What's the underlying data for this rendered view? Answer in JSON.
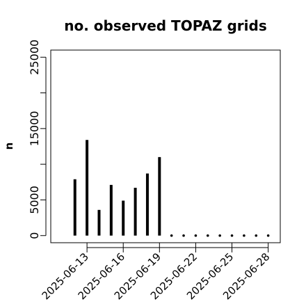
{
  "chart_data": {
    "type": "bar",
    "title": "no. observed TOPAZ grids",
    "xlabel": "",
    "ylabel": "n",
    "x": [
      "2025-06-12",
      "2025-06-13",
      "2025-06-14",
      "2025-06-15",
      "2025-06-16",
      "2025-06-17",
      "2025-06-18",
      "2025-06-19",
      "2025-06-20",
      "2025-06-21",
      "2025-06-22",
      "2025-06-23",
      "2025-06-24",
      "2025-06-25",
      "2025-06-26",
      "2025-06-27",
      "2025-06-28"
    ],
    "values": [
      7900,
      13400,
      3600,
      7100,
      4900,
      6700,
      8700,
      11000,
      0,
      0,
      0,
      0,
      0,
      0,
      0,
      0,
      0
    ],
    "xlim": [
      "2025-06-10",
      "2025-06-29"
    ],
    "ylim": [
      -1000,
      26000
    ],
    "yticks": [
      0,
      5000,
      15000,
      25000
    ],
    "yticks_minor": [
      10000,
      20000
    ],
    "xticks": [
      "2025-06-13",
      "2025-06-16",
      "2025-06-19",
      "2025-06-22",
      "2025-06-25",
      "2025-06-28"
    ],
    "highlight_tick": "2025-06-19",
    "highlight_color": "#228b22",
    "bar_color": "#000000",
    "grid": false,
    "legend": "none"
  }
}
